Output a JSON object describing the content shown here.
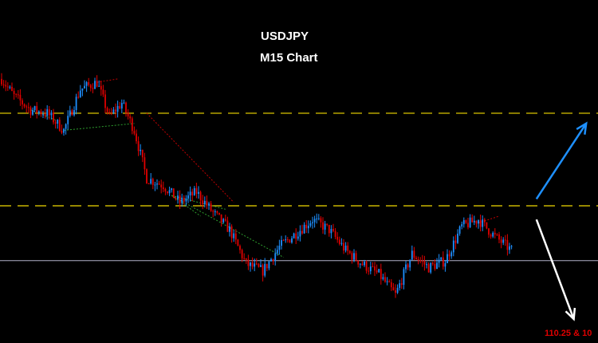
{
  "title": "USDJPY",
  "subtitle": "M15 Chart",
  "target_label": "110.25 & 10",
  "colors": {
    "background": "#000000",
    "bull": "#1e90ff",
    "bear": "#e00000",
    "resistance": "#c8b400",
    "support": "#b0b0c8",
    "arrow_up": "#1e90ff",
    "arrow_down": "#ffffff",
    "pattern_green": "#2e9e2e",
    "pattern_red": "#c00000"
  },
  "chart_data": {
    "type": "candlestick",
    "symbol": "USDJPY",
    "timeframe": "M15",
    "y_unit": "relative price (0 = chart bottom, 100 = chart top)",
    "ylim": [
      0,
      100
    ],
    "close_path": [
      {
        "bar": 0,
        "close": 77
      },
      {
        "bar": 6,
        "close": 72
      },
      {
        "bar": 14,
        "close": 68
      },
      {
        "bar": 22,
        "close": 67
      },
      {
        "bar": 30,
        "close": 62
      },
      {
        "bar": 38,
        "close": 74
      },
      {
        "bar": 46,
        "close": 76
      },
      {
        "bar": 52,
        "close": 66
      },
      {
        "bar": 58,
        "close": 70
      },
      {
        "bar": 64,
        "close": 62
      },
      {
        "bar": 70,
        "close": 48
      },
      {
        "bar": 78,
        "close": 46
      },
      {
        "bar": 86,
        "close": 41
      },
      {
        "bar": 94,
        "close": 44
      },
      {
        "bar": 102,
        "close": 38
      },
      {
        "bar": 110,
        "close": 33
      },
      {
        "bar": 118,
        "close": 23
      },
      {
        "bar": 126,
        "close": 21
      },
      {
        "bar": 134,
        "close": 28
      },
      {
        "bar": 142,
        "close": 32
      },
      {
        "bar": 150,
        "close": 36
      },
      {
        "bar": 158,
        "close": 33
      },
      {
        "bar": 166,
        "close": 27
      },
      {
        "bar": 174,
        "close": 23
      },
      {
        "bar": 182,
        "close": 20
      },
      {
        "bar": 190,
        "close": 14
      },
      {
        "bar": 198,
        "close": 26
      },
      {
        "bar": 206,
        "close": 22
      },
      {
        "bar": 214,
        "close": 24
      },
      {
        "bar": 222,
        "close": 34
      },
      {
        "bar": 230,
        "close": 36
      },
      {
        "bar": 238,
        "close": 31
      },
      {
        "bar": 246,
        "close": 27
      }
    ],
    "horizontal_levels": [
      {
        "name": "upper-resistance",
        "value": 67,
        "style": "dashed"
      },
      {
        "name": "lower-resistance",
        "value": 40,
        "style": "dashed"
      },
      {
        "name": "support",
        "value": 24,
        "style": "solid"
      }
    ],
    "arrows": [
      {
        "name": "bullish-arrow",
        "from": {
          "bar": 258,
          "price": 42
        },
        "to": {
          "bar": 282,
          "price": 64
        }
      },
      {
        "name": "bearish-arrow",
        "from": {
          "bar": 258,
          "price": 36
        },
        "to": {
          "bar": 276,
          "price": 7
        }
      }
    ],
    "trendlines": [
      {
        "color": "pattern_green",
        "from": {
          "bar": 14,
          "price": 68
        },
        "to": {
          "bar": 26,
          "price": 65
        }
      },
      {
        "color": "pattern_green",
        "from": {
          "bar": 30,
          "price": 62
        },
        "to": {
          "bar": 64,
          "price": 64
        }
      },
      {
        "color": "pattern_red",
        "from": {
          "bar": 46,
          "price": 76
        },
        "to": {
          "bar": 56,
          "price": 77
        }
      },
      {
        "color": "pattern_red",
        "from": {
          "bar": 70,
          "price": 67
        },
        "to": {
          "bar": 112,
          "price": 41
        }
      },
      {
        "color": "pattern_green",
        "from": {
          "bar": 82,
          "price": 43
        },
        "to": {
          "bar": 136,
          "price": 25
        }
      },
      {
        "color": "pattern_green",
        "from": {
          "bar": 82,
          "price": 43
        },
        "to": {
          "bar": 96,
          "price": 37
        }
      },
      {
        "color": "pattern_green",
        "from": {
          "bar": 82,
          "price": 43
        },
        "to": {
          "bar": 108,
          "price": 39
        }
      },
      {
        "color": "pattern_red",
        "from": {
          "bar": 230,
          "price": 35
        },
        "to": {
          "bar": 240,
          "price": 37
        }
      }
    ],
    "grid": false,
    "legend": "none"
  }
}
